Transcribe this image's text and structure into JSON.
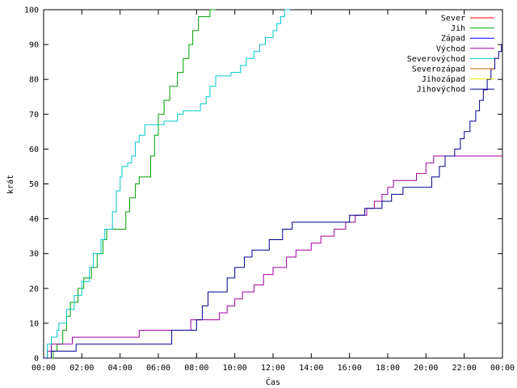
{
  "chart_data": {
    "type": "line",
    "xlabel": "Čas",
    "ylabel": "krát",
    "xlim": [
      0,
      24
    ],
    "ylim": [
      0,
      100
    ],
    "x_tick_labels": [
      "00:00",
      "02:00",
      "04:00",
      "06:00",
      "08:00",
      "10:00",
      "12:00",
      "14:00",
      "16:00",
      "18:00",
      "20:00",
      "22:00",
      "00:00"
    ],
    "y_tick_labels": [
      "0",
      "10",
      "20",
      "30",
      "40",
      "50",
      "60",
      "70",
      "80",
      "90",
      "100"
    ],
    "legend_position": "top-right",
    "grid": false,
    "series": [
      {
        "name": "Sever",
        "color": "#ff0000",
        "points": []
      },
      {
        "name": "Jih",
        "color": "#00a000",
        "points": [
          [
            0.0,
            0
          ],
          [
            0.5,
            0
          ],
          [
            0.5,
            2
          ],
          [
            0.7,
            2
          ],
          [
            0.7,
            4
          ],
          [
            1.0,
            4
          ],
          [
            1.0,
            8
          ],
          [
            1.2,
            8
          ],
          [
            1.2,
            12
          ],
          [
            1.4,
            12
          ],
          [
            1.4,
            16
          ],
          [
            1.8,
            16
          ],
          [
            1.8,
            20
          ],
          [
            2.1,
            20
          ],
          [
            2.1,
            23
          ],
          [
            2.5,
            23
          ],
          [
            2.5,
            26
          ],
          [
            2.8,
            26
          ],
          [
            2.8,
            30
          ],
          [
            3.1,
            30
          ],
          [
            3.1,
            34
          ],
          [
            3.3,
            34
          ],
          [
            3.3,
            37
          ],
          [
            4.3,
            37
          ],
          [
            4.3,
            42
          ],
          [
            4.5,
            42
          ],
          [
            4.5,
            46
          ],
          [
            4.8,
            46
          ],
          [
            4.8,
            50
          ],
          [
            5.0,
            50
          ],
          [
            5.0,
            52
          ],
          [
            5.6,
            52
          ],
          [
            5.6,
            58
          ],
          [
            5.8,
            58
          ],
          [
            5.8,
            64
          ],
          [
            6.0,
            64
          ],
          [
            6.0,
            70
          ],
          [
            6.3,
            70
          ],
          [
            6.3,
            74
          ],
          [
            6.6,
            74
          ],
          [
            6.6,
            78
          ],
          [
            7.0,
            78
          ],
          [
            7.0,
            82
          ],
          [
            7.3,
            82
          ],
          [
            7.3,
            86
          ],
          [
            7.6,
            86
          ],
          [
            7.6,
            90
          ],
          [
            7.8,
            90
          ],
          [
            7.8,
            94
          ],
          [
            8.1,
            94
          ],
          [
            8.1,
            98
          ],
          [
            8.7,
            98
          ],
          [
            8.7,
            100
          ],
          [
            9.0,
            100
          ]
        ]
      },
      {
        "name": "Západ",
        "color": "#0000ff",
        "points": []
      },
      {
        "name": "Východ",
        "color": "#a000a0",
        "points": [
          [
            0.0,
            0
          ],
          [
            0.2,
            0
          ],
          [
            0.2,
            2
          ],
          [
            0.4,
            2
          ],
          [
            0.4,
            4
          ],
          [
            1.5,
            4
          ],
          [
            1.5,
            6
          ],
          [
            5.0,
            6
          ],
          [
            5.0,
            8
          ],
          [
            7.7,
            8
          ],
          [
            7.7,
            11
          ],
          [
            9.2,
            11
          ],
          [
            9.2,
            13
          ],
          [
            9.6,
            13
          ],
          [
            9.6,
            15
          ],
          [
            10.0,
            15
          ],
          [
            10.0,
            17
          ],
          [
            10.4,
            17
          ],
          [
            10.4,
            19
          ],
          [
            11.0,
            19
          ],
          [
            11.0,
            21
          ],
          [
            11.5,
            21
          ],
          [
            11.5,
            24
          ],
          [
            12.0,
            24
          ],
          [
            12.0,
            26
          ],
          [
            12.7,
            26
          ],
          [
            12.7,
            29
          ],
          [
            13.2,
            29
          ],
          [
            13.2,
            31
          ],
          [
            14.0,
            31
          ],
          [
            14.0,
            33
          ],
          [
            14.5,
            33
          ],
          [
            14.5,
            35
          ],
          [
            15.2,
            35
          ],
          [
            15.2,
            37
          ],
          [
            15.8,
            37
          ],
          [
            15.8,
            39
          ],
          [
            16.3,
            39
          ],
          [
            16.3,
            41
          ],
          [
            16.9,
            41
          ],
          [
            16.9,
            43
          ],
          [
            17.3,
            43
          ],
          [
            17.3,
            45
          ],
          [
            17.7,
            45
          ],
          [
            17.7,
            47
          ],
          [
            18.0,
            47
          ],
          [
            18.0,
            49
          ],
          [
            18.3,
            49
          ],
          [
            18.3,
            51
          ],
          [
            19.5,
            51
          ],
          [
            19.5,
            53
          ],
          [
            20.0,
            53
          ],
          [
            20.0,
            56
          ],
          [
            20.4,
            56
          ],
          [
            20.4,
            58
          ],
          [
            24.0,
            58
          ]
        ]
      },
      {
        "name": "Severovýchod",
        "color": "#00c8c8",
        "points": [
          [
            0.0,
            0
          ],
          [
            0.2,
            0
          ],
          [
            0.2,
            4
          ],
          [
            0.4,
            4
          ],
          [
            0.4,
            6
          ],
          [
            0.7,
            6
          ],
          [
            0.7,
            8
          ],
          [
            0.8,
            8
          ],
          [
            0.8,
            10
          ],
          [
            1.2,
            10
          ],
          [
            1.2,
            14
          ],
          [
            1.6,
            14
          ],
          [
            1.6,
            18
          ],
          [
            2.0,
            18
          ],
          [
            2.0,
            22
          ],
          [
            2.4,
            22
          ],
          [
            2.4,
            26
          ],
          [
            2.6,
            26
          ],
          [
            2.6,
            30
          ],
          [
            3.0,
            30
          ],
          [
            3.0,
            34
          ],
          [
            3.2,
            34
          ],
          [
            3.2,
            37
          ],
          [
            3.6,
            37
          ],
          [
            3.6,
            42
          ],
          [
            3.8,
            42
          ],
          [
            3.8,
            48
          ],
          [
            4.0,
            48
          ],
          [
            4.0,
            52
          ],
          [
            4.1,
            52
          ],
          [
            4.1,
            55
          ],
          [
            4.4,
            55
          ],
          [
            4.4,
            56
          ],
          [
            4.6,
            56
          ],
          [
            4.6,
            58
          ],
          [
            4.8,
            58
          ],
          [
            4.8,
            62
          ],
          [
            5.0,
            62
          ],
          [
            5.0,
            64
          ],
          [
            5.3,
            64
          ],
          [
            5.3,
            67
          ],
          [
            6.3,
            67
          ],
          [
            6.3,
            68
          ],
          [
            7.0,
            68
          ],
          [
            7.0,
            70
          ],
          [
            7.3,
            70
          ],
          [
            7.3,
            71
          ],
          [
            8.2,
            71
          ],
          [
            8.2,
            73
          ],
          [
            8.5,
            73
          ],
          [
            8.5,
            75
          ],
          [
            8.7,
            75
          ],
          [
            8.7,
            78
          ],
          [
            9.0,
            78
          ],
          [
            9.0,
            81
          ],
          [
            9.8,
            81
          ],
          [
            9.8,
            82
          ],
          [
            10.3,
            82
          ],
          [
            10.3,
            84
          ],
          [
            10.6,
            84
          ],
          [
            10.6,
            86
          ],
          [
            11.0,
            86
          ],
          [
            11.0,
            88
          ],
          [
            11.3,
            88
          ],
          [
            11.3,
            90
          ],
          [
            11.6,
            90
          ],
          [
            11.6,
            92
          ],
          [
            12.0,
            92
          ],
          [
            12.0,
            94
          ],
          [
            12.2,
            94
          ],
          [
            12.2,
            96
          ],
          [
            12.4,
            96
          ],
          [
            12.4,
            98
          ],
          [
            12.6,
            98
          ],
          [
            12.6,
            100
          ],
          [
            12.9,
            100
          ]
        ]
      },
      {
        "name": "Severozápad",
        "color": "#c86400",
        "points": []
      },
      {
        "name": "Jihozápad",
        "color": "#e6e600",
        "points": []
      },
      {
        "name": "Jihovýchod",
        "color": "#00008c",
        "points": [
          [
            0.0,
            0
          ],
          [
            0.4,
            0
          ],
          [
            0.4,
            2
          ],
          [
            1.7,
            2
          ],
          [
            1.7,
            4
          ],
          [
            6.7,
            4
          ],
          [
            6.7,
            8
          ],
          [
            8.0,
            8
          ],
          [
            8.0,
            11
          ],
          [
            8.3,
            11
          ],
          [
            8.3,
            15
          ],
          [
            8.6,
            15
          ],
          [
            8.6,
            19
          ],
          [
            9.6,
            19
          ],
          [
            9.6,
            23
          ],
          [
            10.0,
            23
          ],
          [
            10.0,
            26
          ],
          [
            10.5,
            26
          ],
          [
            10.5,
            29
          ],
          [
            10.9,
            29
          ],
          [
            10.9,
            31
          ],
          [
            11.8,
            31
          ],
          [
            11.8,
            34
          ],
          [
            12.5,
            34
          ],
          [
            12.5,
            37
          ],
          [
            13.0,
            37
          ],
          [
            13.0,
            39
          ],
          [
            16.0,
            39
          ],
          [
            16.0,
            41
          ],
          [
            16.8,
            41
          ],
          [
            16.8,
            43
          ],
          [
            17.7,
            43
          ],
          [
            17.7,
            45
          ],
          [
            18.2,
            45
          ],
          [
            18.2,
            47
          ],
          [
            18.8,
            47
          ],
          [
            18.8,
            49
          ],
          [
            20.3,
            49
          ],
          [
            20.3,
            52
          ],
          [
            20.7,
            52
          ],
          [
            20.7,
            55
          ],
          [
            21.0,
            55
          ],
          [
            21.0,
            58
          ],
          [
            21.5,
            58
          ],
          [
            21.5,
            60
          ],
          [
            21.8,
            60
          ],
          [
            21.8,
            63
          ],
          [
            22.0,
            63
          ],
          [
            22.0,
            65
          ],
          [
            22.3,
            65
          ],
          [
            22.3,
            68
          ],
          [
            22.6,
            68
          ],
          [
            22.6,
            71
          ],
          [
            22.8,
            71
          ],
          [
            22.8,
            74
          ],
          [
            23.0,
            74
          ],
          [
            23.0,
            77
          ],
          [
            23.2,
            77
          ],
          [
            23.2,
            80
          ],
          [
            23.4,
            80
          ],
          [
            23.4,
            83
          ],
          [
            23.6,
            83
          ],
          [
            23.6,
            86
          ],
          [
            23.8,
            86
          ],
          [
            23.8,
            88
          ],
          [
            23.95,
            88
          ],
          [
            23.95,
            90
          ],
          [
            24.0,
            90
          ]
        ]
      }
    ]
  }
}
